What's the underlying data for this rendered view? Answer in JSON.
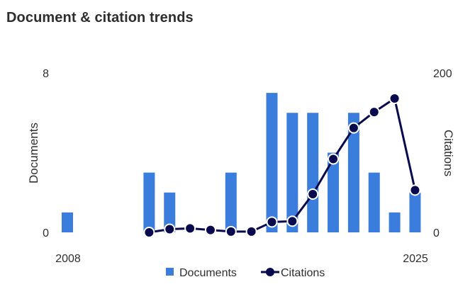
{
  "title": "Document & citation trends",
  "colors": {
    "documents": "#3b7ddd",
    "citations": "#090a4d"
  },
  "chart_data": {
    "type": "bar",
    "x": [
      2008,
      2009,
      2010,
      2011,
      2012,
      2013,
      2014,
      2015,
      2016,
      2017,
      2018,
      2019,
      2020,
      2021,
      2022,
      2023,
      2024,
      2025
    ],
    "x_tick_labels": [
      "2008",
      "2025"
    ],
    "series": [
      {
        "name": "Documents",
        "type": "bar",
        "axis": "left",
        "values": [
          1,
          0,
          0,
          0,
          3,
          2,
          0,
          0,
          3,
          0,
          7,
          6,
          6,
          4,
          6,
          3,
          1,
          2
        ]
      },
      {
        "name": "Citations",
        "type": "line",
        "axis": "right",
        "values": [
          null,
          null,
          null,
          null,
          0,
          4,
          5,
          3,
          1,
          1,
          13,
          14,
          48,
          92,
          131,
          151,
          168,
          53
        ]
      }
    ],
    "ylabel": "Documents",
    "ylim": [
      0,
      8
    ],
    "y_tick_labels": [
      "0",
      "8"
    ],
    "y2label": "Citations",
    "y2lim": [
      0,
      200
    ],
    "y2_tick_labels": [
      "0",
      "200"
    ],
    "legend": [
      "Documents",
      "Citations"
    ],
    "legend_position": "bottom",
    "grid": false
  }
}
